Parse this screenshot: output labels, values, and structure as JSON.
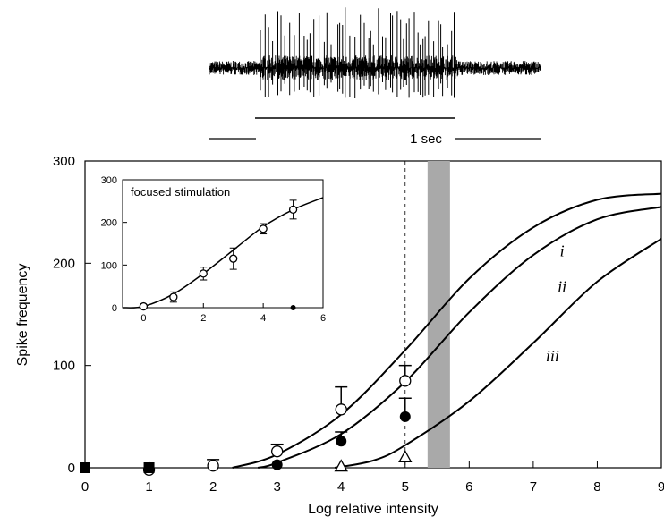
{
  "recording": {
    "scale_bar_label": "1 sec"
  },
  "chart_data": [
    {
      "type": "line",
      "name": "main",
      "xlabel": "Log relative  intensity",
      "ylabel": "Spike frequency",
      "xlim": [
        0,
        9
      ],
      "ylim": [
        0,
        300
      ],
      "x_ticks": [
        0,
        1,
        2,
        3,
        4,
        5,
        6,
        7,
        8,
        9
      ],
      "y_ticks": [
        0,
        100,
        200,
        300
      ],
      "dashed_vertical_line_x": 5,
      "shaded_band_x": [
        5.35,
        5.7
      ],
      "curves": [
        {
          "name": "i",
          "x": [
            2.3,
            3,
            4,
            5,
            6,
            7,
            8,
            9
          ],
          "y": [
            0,
            13,
            52,
            115,
            185,
            235,
            262,
            268
          ]
        },
        {
          "name": "ii",
          "x": [
            2.7,
            3,
            4,
            5,
            6,
            7,
            8,
            9
          ],
          "y": [
            0,
            5,
            33,
            84,
            152,
            208,
            243,
            255
          ]
        },
        {
          "name": "iii",
          "x": [
            3.9,
            4.5,
            5,
            6,
            7,
            8,
            9
          ],
          "y": [
            0,
            7,
            22,
            65,
            122,
            182,
            224
          ]
        }
      ],
      "series": [
        {
          "name": "open circles",
          "x": [
            1,
            2,
            3,
            4,
            5
          ],
          "y": [
            -2,
            2,
            16,
            57,
            85
          ],
          "err": [
            0,
            6,
            7,
            22,
            15
          ]
        },
        {
          "name": "filled circles",
          "x": [
            3,
            4,
            5
          ],
          "y": [
            3,
            26,
            50
          ],
          "err": [
            0,
            9,
            18
          ]
        },
        {
          "name": "open triangles",
          "x": [
            4,
            5
          ],
          "y": [
            1,
            10
          ],
          "err": [
            0,
            0
          ]
        },
        {
          "name": "filled squares",
          "x": [
            0,
            1
          ],
          "y": [
            0,
            0
          ],
          "err": [
            0,
            0
          ]
        }
      ]
    },
    {
      "type": "line",
      "name": "inset",
      "title": "focused stimulation",
      "xlim": [
        -0.7,
        6
      ],
      "ylim": [
        0,
        300
      ],
      "x_ticks": [
        0,
        2,
        4,
        6
      ],
      "y_ticks": [
        0,
        100,
        200,
        300
      ],
      "curve": {
        "x": [
          -0.7,
          0,
          1,
          2,
          3,
          4,
          5,
          6
        ],
        "y": [
          0,
          3,
          32,
          80,
          135,
          190,
          230,
          258
        ]
      },
      "series": [
        {
          "name": "open circles",
          "x": [
            0,
            1,
            2,
            3,
            4,
            5
          ],
          "y": [
            3,
            25,
            80,
            115,
            185,
            230
          ],
          "err": [
            0,
            12,
            15,
            25,
            12,
            22
          ]
        },
        {
          "name": "filled circle",
          "x": [
            5
          ],
          "y": [
            0
          ],
          "err": [
            0
          ]
        }
      ]
    }
  ]
}
